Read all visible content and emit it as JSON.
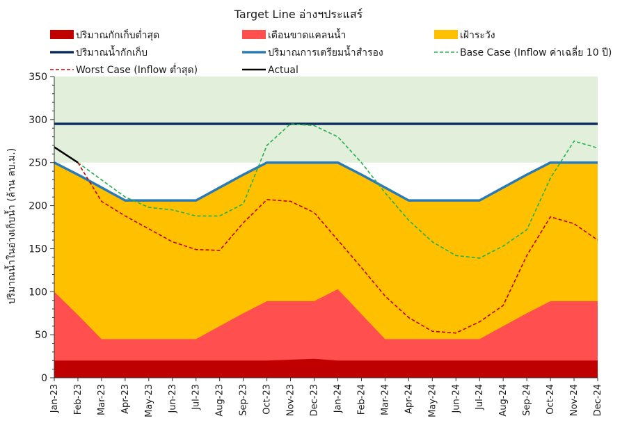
{
  "chart_data": {
    "type": "area",
    "title": "Target Line อ่างฯประแสร์",
    "xlabel": "",
    "ylabel": "ปริมาณน้ำในอ่างเก็บน้ำ (ล้าน ลบ.ม.)",
    "ylim": [
      0,
      350
    ],
    "yticks": [
      0,
      50,
      100,
      150,
      200,
      250,
      300,
      350
    ],
    "grid": false,
    "legend_position": "top",
    "categories": [
      "Jan-23",
      "Feb-23",
      "Mar-23",
      "Apr-23",
      "May-23",
      "Jun-23",
      "Jul-23",
      "Aug-23",
      "Sep-23",
      "Oct-23",
      "Nov-23",
      "Dec-23",
      "Jan-24",
      "Feb-24",
      "Mar-24",
      "Apr-24",
      "May-24",
      "Jun-24",
      "Jul-24",
      "Aug-24",
      "Sep-24",
      "Oct-24",
      "Nov-24",
      "Dec-24"
    ],
    "background_band": {
      "name": "",
      "from": 250,
      "to": 350,
      "color": "#e2efda"
    },
    "series": [
      {
        "name": "ปริมาณกักเก็บต่ำสุด",
        "kind": "area",
        "color": "#c00000",
        "values": [
          20,
          20,
          20,
          20,
          20,
          20,
          20,
          20,
          20,
          20,
          21,
          22,
          20,
          20,
          20,
          20,
          20,
          20,
          20,
          20,
          20,
          20,
          20,
          20
        ]
      },
      {
        "name": "เตือนขาดแคลนน้ำ",
        "kind": "area",
        "color": "#ff4f4f",
        "values": [
          100,
          73,
          45,
          45,
          45,
          45,
          45,
          60,
          75,
          89,
          89,
          89,
          103,
          74,
          45,
          45,
          45,
          45,
          45,
          60,
          75,
          89,
          89,
          89
        ]
      },
      {
        "name": "เฝ้าระวัง",
        "kind": "area",
        "color": "#ffc000",
        "values": [
          250,
          236,
          221,
          206,
          206,
          206,
          206,
          221,
          236,
          250,
          250,
          250,
          250,
          236,
          221,
          206,
          206,
          206,
          206,
          221,
          236,
          250,
          250,
          250
        ]
      },
      {
        "name": "ปริมาณน้ำกักเก็บ",
        "kind": "line",
        "color": "#0d2d5e",
        "dash": "solid",
        "values": [
          295,
          295,
          295,
          295,
          295,
          295,
          295,
          295,
          295,
          295,
          295,
          295,
          295,
          295,
          295,
          295,
          295,
          295,
          295,
          295,
          295,
          295,
          295,
          295
        ]
      },
      {
        "name": "ปริมาณการเตรียมน้ำสำรอง",
        "kind": "line",
        "color": "#2a7ab8",
        "dash": "solid",
        "values": [
          250,
          236,
          221,
          206,
          206,
          206,
          206,
          221,
          236,
          250,
          250,
          250,
          250,
          236,
          221,
          206,
          206,
          206,
          206,
          221,
          236,
          250,
          250,
          250
        ]
      },
      {
        "name": "Base Case (Inflow ค่าเฉลี่ย 10 ปี)",
        "kind": "line",
        "color": "#22b14c",
        "dash": "dashed",
        "values": [
          null,
          250,
          230,
          210,
          198,
          195,
          188,
          188,
          202,
          270,
          295,
          293,
          280,
          250,
          215,
          183,
          158,
          142,
          139,
          153,
          172,
          232,
          275,
          267
        ]
      },
      {
        "name": "Worst Case (Inflow ต่ำสุด)",
        "kind": "line",
        "color": "#c00000",
        "dash": "dashed",
        "values": [
          null,
          250,
          205,
          188,
          173,
          158,
          149,
          148,
          180,
          207,
          205,
          192,
          160,
          128,
          95,
          70,
          54,
          52,
          65,
          84,
          142,
          187,
          179,
          160
        ]
      },
      {
        "name": "Actual",
        "kind": "line",
        "color": "#000000",
        "dash": "solid",
        "values": [
          268,
          250,
          null,
          null,
          null,
          null,
          null,
          null,
          null,
          null,
          null,
          null,
          null,
          null,
          null,
          null,
          null,
          null,
          null,
          null,
          null,
          null,
          null,
          null
        ]
      }
    ]
  }
}
